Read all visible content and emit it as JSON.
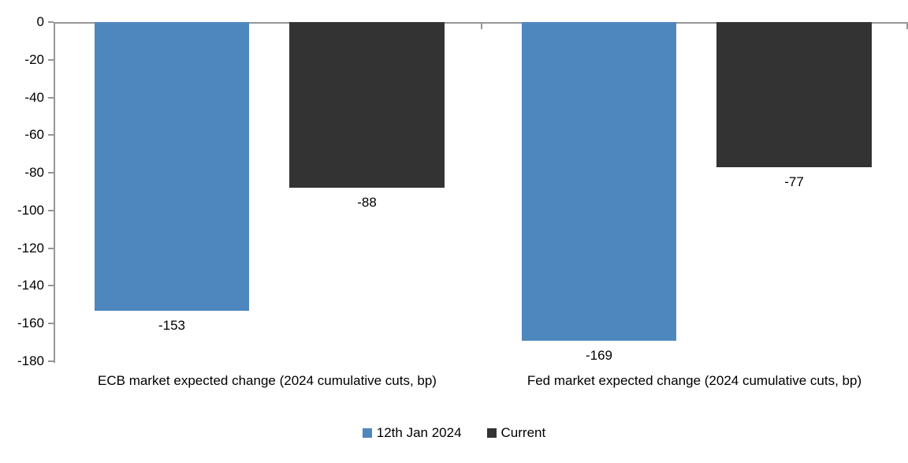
{
  "chart_data": {
    "type": "bar",
    "title": "",
    "xlabel": "",
    "ylabel": "",
    "grid": false,
    "categories": [
      "ECB market expected change (2024 cumulative cuts, bp)",
      "Fed market expected change (2024 cumulative cuts, bp)"
    ],
    "series": [
      {
        "name": "12th Jan 2024",
        "color": "#4E87BE",
        "values": [
          -153,
          -169
        ],
        "labels": [
          "-153",
          "-169"
        ]
      },
      {
        "name": "Current",
        "color": "#333333",
        "values": [
          -88,
          -77
        ],
        "labels": [
          "-88",
          "-77"
        ]
      }
    ],
    "y_axis": {
      "min": -180,
      "max": 0,
      "step": 20,
      "tick_labels": [
        "0",
        "-20",
        "-40",
        "-60",
        "-80",
        "-100",
        "-120",
        "-140",
        "-160",
        "-180"
      ]
    },
    "legend": {
      "position": "bottom",
      "entries": [
        "12th Jan 2024",
        "Current"
      ]
    },
    "colors": {
      "axis_line": "#969696",
      "text": "#000000",
      "background": "#FFFFFF"
    }
  }
}
